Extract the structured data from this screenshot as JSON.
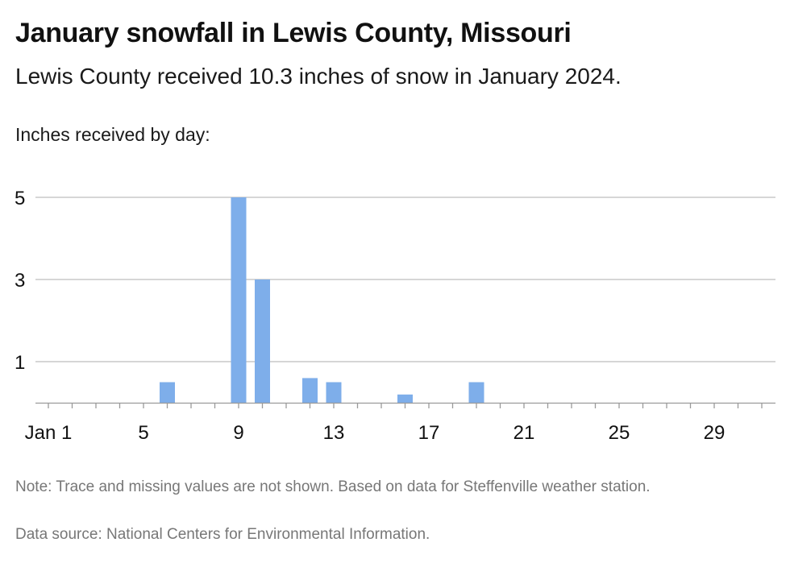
{
  "header": {
    "title": "January snowfall in Lewis County, Missouri",
    "subtitle": "Lewis County received 10.3 inches of snow in January 2024."
  },
  "footer": {
    "note": "Note: Trace and missing values are not shown. Based on data for Steffenville weather station.",
    "source": "Data source: National Centers for Environmental Information."
  },
  "chart_data": {
    "type": "bar",
    "title": "January snowfall in Lewis County, Missouri",
    "subtitle": "Lewis County received 10.3 inches of snow in January 2024.",
    "ylabel": "Inches received by day:",
    "xlabel": "",
    "bar_color": "#7eaeea",
    "grid": true,
    "y_ticks": [
      1,
      3,
      5
    ],
    "ylim": [
      0,
      5
    ],
    "x_ticks": [
      {
        "day": 1,
        "label": "Jan 1"
      },
      {
        "day": 5,
        "label": "5"
      },
      {
        "day": 9,
        "label": "9"
      },
      {
        "day": 13,
        "label": "13"
      },
      {
        "day": 17,
        "label": "17"
      },
      {
        "day": 21,
        "label": "21"
      },
      {
        "day": 25,
        "label": "25"
      },
      {
        "day": 29,
        "label": "29"
      }
    ],
    "xlim": [
      1,
      31
    ],
    "points": [
      {
        "day": 6,
        "value": 0.5
      },
      {
        "day": 9,
        "value": 5
      },
      {
        "day": 10,
        "value": 3
      },
      {
        "day": 12,
        "value": 0.6
      },
      {
        "day": 13,
        "value": 0.5
      },
      {
        "day": 16,
        "value": 0.2
      },
      {
        "day": 19,
        "value": 0.5
      }
    ]
  }
}
